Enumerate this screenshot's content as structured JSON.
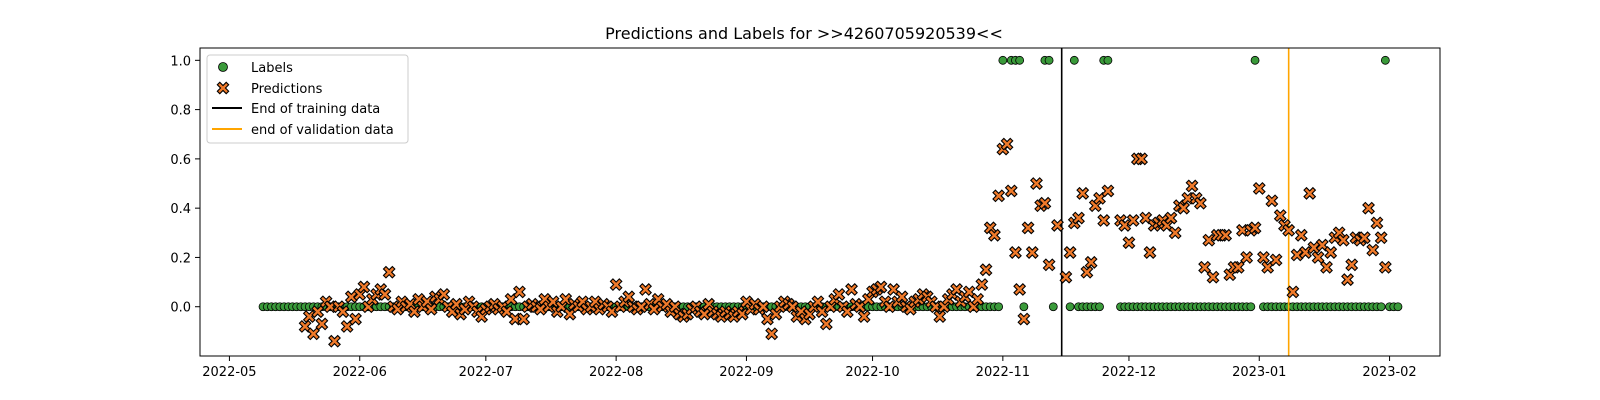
{
  "chart_data": {
    "type": "scatter",
    "title": "Predictions and Labels for >>4260705920539<<",
    "xlabel": "",
    "ylabel": "",
    "xlim": [
      "2022-04-24",
      "2023-02-13"
    ],
    "ylim": [
      -0.2,
      1.05
    ],
    "x_ticks": [
      "2022-05",
      "2022-06",
      "2022-07",
      "2022-08",
      "2022-09",
      "2022-10",
      "2022-11",
      "2022-12",
      "2023-01",
      "2023-02"
    ],
    "y_ticks": [
      "0.0",
      "0.2",
      "0.4",
      "0.6",
      "0.8",
      "1.0"
    ],
    "grid": false,
    "legend_position": "upper-left",
    "colors": {
      "labels": "#3a9a3a",
      "predictions": "#f07a2a",
      "training_line": "#000000",
      "validation_line": "#ffa500"
    },
    "legend": [
      {
        "label": "Labels",
        "kind": "circle-marker"
      },
      {
        "label": "Predictions",
        "kind": "x-marker"
      },
      {
        "label": "End of training data",
        "kind": "line"
      },
      {
        "label": "end of validation data",
        "kind": "line"
      }
    ],
    "vlines": [
      {
        "name": "End of training data",
        "x": "2022-11-15"
      },
      {
        "name": "end of validation data",
        "x": "2023-01-08"
      }
    ],
    "labels_series": {
      "name": "Labels",
      "start": "2022-05-09",
      "end": "2023-02-03",
      "positive_dates": [
        "2022-11-01",
        "2022-11-03",
        "2022-11-04",
        "2022-11-05",
        "2022-11-11",
        "2022-11-12",
        "2022-11-18",
        "2022-11-25",
        "2022-11-26",
        "2022-12-31",
        "2023-01-31"
      ],
      "missing_dates": [
        "2022-11-02",
        "2022-11-07",
        "2022-11-08",
        "2022-11-09",
        "2022-11-10",
        "2022-11-14",
        "2022-11-15",
        "2022-11-16",
        "2022-11-27",
        "2022-11-28",
        "2023-01-01"
      ]
    },
    "predictions_series": {
      "name": "Predictions",
      "points": [
        [
          "2022-05-19",
          -0.08
        ],
        [
          "2022-05-20",
          -0.04
        ],
        [
          "2022-05-21",
          -0.11
        ],
        [
          "2022-05-22",
          -0.02
        ],
        [
          "2022-05-23",
          -0.07
        ],
        [
          "2022-05-24",
          0.02
        ],
        [
          "2022-05-25",
          0.0
        ],
        [
          "2022-05-26",
          -0.14
        ],
        [
          "2022-05-27",
          0.0
        ],
        [
          "2022-05-28",
          -0.02
        ],
        [
          "2022-05-29",
          -0.08
        ],
        [
          "2022-05-30",
          0.04
        ],
        [
          "2022-05-31",
          -0.05
        ],
        [
          "2022-06-01",
          0.05
        ],
        [
          "2022-06-02",
          0.08
        ],
        [
          "2022-06-03",
          0.0
        ],
        [
          "2022-06-04",
          0.03
        ],
        [
          "2022-06-05",
          0.05
        ],
        [
          "2022-06-06",
          0.07
        ],
        [
          "2022-06-07",
          0.05
        ],
        [
          "2022-06-08",
          0.14
        ],
        [
          "2022-06-09",
          0.0
        ],
        [
          "2022-06-10",
          -0.01
        ],
        [
          "2022-06-11",
          0.02
        ],
        [
          "2022-06-12",
          0.0
        ],
        [
          "2022-06-13",
          0.01
        ],
        [
          "2022-06-14",
          -0.02
        ],
        [
          "2022-06-15",
          0.03
        ],
        [
          "2022-06-16",
          0.0
        ],
        [
          "2022-06-17",
          0.02
        ],
        [
          "2022-06-18",
          -0.01
        ],
        [
          "2022-06-19",
          0.04
        ],
        [
          "2022-06-20",
          0.03
        ],
        [
          "2022-06-21",
          0.05
        ],
        [
          "2022-06-22",
          0.0
        ],
        [
          "2022-06-23",
          -0.02
        ],
        [
          "2022-06-24",
          0.01
        ],
        [
          "2022-06-25",
          -0.03
        ],
        [
          "2022-06-26",
          -0.01
        ],
        [
          "2022-06-27",
          0.02
        ],
        [
          "2022-06-28",
          0.0
        ],
        [
          "2022-06-29",
          -0.02
        ],
        [
          "2022-06-30",
          -0.04
        ],
        [
          "2022-07-01",
          -0.01
        ],
        [
          "2022-07-02",
          0.0
        ],
        [
          "2022-07-03",
          0.01
        ],
        [
          "2022-07-04",
          -0.01
        ],
        [
          "2022-07-05",
          0.0
        ],
        [
          "2022-07-06",
          -0.02
        ],
        [
          "2022-07-07",
          0.03
        ],
        [
          "2022-07-08",
          -0.05
        ],
        [
          "2022-07-09",
          0.06
        ],
        [
          "2022-07-10",
          -0.05
        ],
        [
          "2022-07-11",
          0.0
        ],
        [
          "2022-07-12",
          0.01
        ],
        [
          "2022-07-13",
          0.0
        ],
        [
          "2022-07-14",
          -0.01
        ],
        [
          "2022-07-15",
          0.03
        ],
        [
          "2022-07-16",
          0.0
        ],
        [
          "2022-07-17",
          0.02
        ],
        [
          "2022-07-18",
          -0.02
        ],
        [
          "2022-07-19",
          0.0
        ],
        [
          "2022-07-20",
          0.03
        ],
        [
          "2022-07-21",
          -0.03
        ],
        [
          "2022-07-22",
          0.01
        ],
        [
          "2022-07-23",
          0.0
        ],
        [
          "2022-07-24",
          0.02
        ],
        [
          "2022-07-25",
          -0.01
        ],
        [
          "2022-07-26",
          0.0
        ],
        [
          "2022-07-27",
          0.02
        ],
        [
          "2022-07-28",
          -0.01
        ],
        [
          "2022-07-29",
          0.01
        ],
        [
          "2022-07-30",
          0.0
        ],
        [
          "2022-07-31",
          -0.02
        ],
        [
          "2022-08-01",
          0.09
        ],
        [
          "2022-08-02",
          0.0
        ],
        [
          "2022-08-03",
          0.02
        ],
        [
          "2022-08-04",
          0.04
        ],
        [
          "2022-08-05",
          0.0
        ],
        [
          "2022-08-06",
          -0.01
        ],
        [
          "2022-08-07",
          0.0
        ],
        [
          "2022-08-08",
          0.07
        ],
        [
          "2022-08-09",
          0.01
        ],
        [
          "2022-08-10",
          -0.01
        ],
        [
          "2022-08-11",
          0.03
        ],
        [
          "2022-08-12",
          0.0
        ],
        [
          "2022-08-13",
          0.01
        ],
        [
          "2022-08-14",
          -0.02
        ],
        [
          "2022-08-15",
          0.0
        ],
        [
          "2022-08-16",
          -0.03
        ],
        [
          "2022-08-17",
          -0.04
        ],
        [
          "2022-08-18",
          -0.03
        ],
        [
          "2022-08-19",
          -0.01
        ],
        [
          "2022-08-20",
          0.0
        ],
        [
          "2022-08-21",
          -0.02
        ],
        [
          "2022-08-22",
          -0.03
        ],
        [
          "2022-08-23",
          0.01
        ],
        [
          "2022-08-24",
          -0.02
        ],
        [
          "2022-08-25",
          -0.03
        ],
        [
          "2022-08-26",
          -0.04
        ],
        [
          "2022-08-27",
          -0.02
        ],
        [
          "2022-08-28",
          -0.03
        ],
        [
          "2022-08-29",
          -0.04
        ],
        [
          "2022-08-30",
          -0.02
        ],
        [
          "2022-08-31",
          -0.03
        ],
        [
          "2022-09-01",
          0.02
        ],
        [
          "2022-09-02",
          -0.01
        ],
        [
          "2022-09-03",
          0.01
        ],
        [
          "2022-09-04",
          -0.01
        ],
        [
          "2022-09-05",
          0.0
        ],
        [
          "2022-09-06",
          -0.05
        ],
        [
          "2022-09-07",
          -0.11
        ],
        [
          "2022-09-08",
          -0.03
        ],
        [
          "2022-09-09",
          0.0
        ],
        [
          "2022-09-10",
          0.02
        ],
        [
          "2022-09-11",
          0.01
        ],
        [
          "2022-09-12",
          0.0
        ],
        [
          "2022-09-13",
          -0.04
        ],
        [
          "2022-09-14",
          -0.02
        ],
        [
          "2022-09-15",
          -0.05
        ],
        [
          "2022-09-16",
          -0.03
        ],
        [
          "2022-09-17",
          0.0
        ],
        [
          "2022-09-18",
          0.02
        ],
        [
          "2022-09-19",
          -0.02
        ],
        [
          "2022-09-20",
          -0.07
        ],
        [
          "2022-09-21",
          0.0
        ],
        [
          "2022-09-22",
          0.03
        ],
        [
          "2022-09-23",
          0.05
        ],
        [
          "2022-09-24",
          0.0
        ],
        [
          "2022-09-25",
          -0.02
        ],
        [
          "2022-09-26",
          0.07
        ],
        [
          "2022-09-27",
          0.01
        ],
        [
          "2022-09-28",
          0.0
        ],
        [
          "2022-09-29",
          -0.04
        ],
        [
          "2022-09-30",
          0.03
        ],
        [
          "2022-10-01",
          0.06
        ],
        [
          "2022-10-02",
          0.07
        ],
        [
          "2022-10-03",
          0.08
        ],
        [
          "2022-10-04",
          0.02
        ],
        [
          "2022-10-05",
          0.0
        ],
        [
          "2022-10-06",
          0.07
        ],
        [
          "2022-10-07",
          0.02
        ],
        [
          "2022-10-08",
          0.04
        ],
        [
          "2022-10-09",
          0.0
        ],
        [
          "2022-10-10",
          -0.01
        ],
        [
          "2022-10-11",
          0.02
        ],
        [
          "2022-10-12",
          0.03
        ],
        [
          "2022-10-13",
          0.05
        ],
        [
          "2022-10-14",
          0.04
        ],
        [
          "2022-10-15",
          0.02
        ],
        [
          "2022-10-16",
          0.0
        ],
        [
          "2022-10-17",
          -0.04
        ],
        [
          "2022-10-18",
          0.0
        ],
        [
          "2022-10-19",
          0.03
        ],
        [
          "2022-10-20",
          0.05
        ],
        [
          "2022-10-21",
          0.07
        ],
        [
          "2022-10-22",
          0.02
        ],
        [
          "2022-10-23",
          0.04
        ],
        [
          "2022-10-24",
          0.06
        ],
        [
          "2022-10-25",
          0.0
        ],
        [
          "2022-10-26",
          0.03
        ],
        [
          "2022-10-27",
          0.09
        ],
        [
          "2022-10-28",
          0.15
        ],
        [
          "2022-10-29",
          0.32
        ],
        [
          "2022-10-30",
          0.29
        ],
        [
          "2022-10-31",
          0.45
        ],
        [
          "2022-11-01",
          0.64
        ],
        [
          "2022-11-02",
          0.66
        ],
        [
          "2022-11-03",
          0.47
        ],
        [
          "2022-11-04",
          0.22
        ],
        [
          "2022-11-05",
          0.07
        ],
        [
          "2022-11-06",
          -0.05
        ],
        [
          "2022-11-07",
          0.32
        ],
        [
          "2022-11-08",
          0.22
        ],
        [
          "2022-11-09",
          0.5
        ],
        [
          "2022-11-10",
          0.41
        ],
        [
          "2022-11-11",
          0.42
        ],
        [
          "2022-11-12",
          0.17
        ],
        [
          "2022-11-14",
          0.33
        ],
        [
          "2022-11-16",
          0.12
        ],
        [
          "2022-11-17",
          0.22
        ],
        [
          "2022-11-18",
          0.34
        ],
        [
          "2022-11-19",
          0.36
        ],
        [
          "2022-11-20",
          0.46
        ],
        [
          "2022-11-21",
          0.14
        ],
        [
          "2022-11-22",
          0.18
        ],
        [
          "2022-11-23",
          0.41
        ],
        [
          "2022-11-24",
          0.44
        ],
        [
          "2022-11-25",
          0.35
        ],
        [
          "2022-11-26",
          0.47
        ],
        [
          "2022-11-29",
          0.35
        ],
        [
          "2022-11-30",
          0.33
        ],
        [
          "2022-12-01",
          0.26
        ],
        [
          "2022-12-02",
          0.35
        ],
        [
          "2022-12-03",
          0.6
        ],
        [
          "2022-12-04",
          0.6
        ],
        [
          "2022-12-05",
          0.36
        ],
        [
          "2022-12-06",
          0.22
        ],
        [
          "2022-12-07",
          0.33
        ],
        [
          "2022-12-08",
          0.34
        ],
        [
          "2022-12-09",
          0.35
        ],
        [
          "2022-12-10",
          0.33
        ],
        [
          "2022-12-11",
          0.36
        ],
        [
          "2022-12-12",
          0.3
        ],
        [
          "2022-12-13",
          0.41
        ],
        [
          "2022-12-14",
          0.4
        ],
        [
          "2022-12-15",
          0.44
        ],
        [
          "2022-12-16",
          0.49
        ],
        [
          "2022-12-17",
          0.44
        ],
        [
          "2022-12-18",
          0.42
        ],
        [
          "2022-12-19",
          0.16
        ],
        [
          "2022-12-20",
          0.27
        ],
        [
          "2022-12-21",
          0.12
        ],
        [
          "2022-12-22",
          0.29
        ],
        [
          "2022-12-23",
          0.29
        ],
        [
          "2022-12-24",
          0.29
        ],
        [
          "2022-12-25",
          0.13
        ],
        [
          "2022-12-26",
          0.16
        ],
        [
          "2022-12-27",
          0.16
        ],
        [
          "2022-12-28",
          0.31
        ],
        [
          "2022-12-29",
          0.2
        ],
        [
          "2022-12-30",
          0.31
        ],
        [
          "2022-12-31",
          0.32
        ],
        [
          "2023-01-01",
          0.48
        ],
        [
          "2023-01-02",
          0.2
        ],
        [
          "2023-01-03",
          0.16
        ],
        [
          "2023-01-04",
          0.43
        ],
        [
          "2023-01-05",
          0.19
        ],
        [
          "2023-01-06",
          0.37
        ],
        [
          "2023-01-07",
          0.33
        ],
        [
          "2023-01-08",
          0.31
        ],
        [
          "2023-01-09",
          0.06
        ],
        [
          "2023-01-10",
          0.21
        ],
        [
          "2023-01-11",
          0.29
        ],
        [
          "2023-01-12",
          0.22
        ],
        [
          "2023-01-13",
          0.46
        ],
        [
          "2023-01-14",
          0.24
        ],
        [
          "2023-01-15",
          0.2
        ],
        [
          "2023-01-16",
          0.25
        ],
        [
          "2023-01-17",
          0.16
        ],
        [
          "2023-01-18",
          0.22
        ],
        [
          "2023-01-19",
          0.28
        ],
        [
          "2023-01-20",
          0.3
        ],
        [
          "2023-01-21",
          0.27
        ],
        [
          "2023-01-22",
          0.11
        ],
        [
          "2023-01-23",
          0.17
        ],
        [
          "2023-01-24",
          0.28
        ],
        [
          "2023-01-25",
          0.27
        ],
        [
          "2023-01-26",
          0.28
        ],
        [
          "2023-01-27",
          0.4
        ],
        [
          "2023-01-28",
          0.23
        ],
        [
          "2023-01-29",
          0.34
        ],
        [
          "2023-01-30",
          0.28
        ],
        [
          "2023-01-31",
          0.16
        ]
      ]
    }
  }
}
